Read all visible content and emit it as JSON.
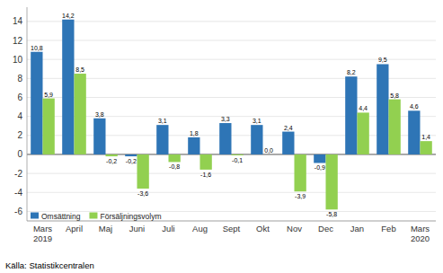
{
  "chart_data": {
    "type": "bar",
    "categories": [
      "Mars\n2019",
      "April",
      "Maj",
      "Juni",
      "Juli",
      "Aug",
      "Sept",
      "Okt",
      "Nov",
      "Dec",
      "Jan",
      "Feb",
      "Mars\n2020"
    ],
    "series": [
      {
        "name": "Omsättning",
        "color": "#2E75B6",
        "values": [
          10.8,
          14.2,
          3.8,
          -0.2,
          3.1,
          1.8,
          3.3,
          3.1,
          2.4,
          -0.9,
          8.2,
          9.5,
          4.6
        ],
        "value_labels": [
          "10,8",
          "14,2",
          "3,8",
          "-0,2",
          "3,1",
          "1,8",
          "3,3",
          "3,1",
          "2,4",
          "-0,9",
          "8,2",
          "9,5",
          "4,6"
        ]
      },
      {
        "name": "Försäljningsvolym",
        "color": "#92D050",
        "values": [
          5.9,
          8.5,
          -0.2,
          -3.6,
          -0.8,
          -1.6,
          -0.1,
          0.0,
          -3.9,
          -5.8,
          4.4,
          5.8,
          1.4
        ],
        "value_labels": [
          "5,9",
          "8,5",
          "-0,2",
          "-3,6",
          "-0,8",
          "-1,6",
          "-0,1",
          "0,0",
          "-3,9",
          "-5,8",
          "4,4",
          "5,8",
          "1,4"
        ]
      }
    ],
    "ylim": [
      -7,
      15.5
    ],
    "yticks": [
      -6,
      -4,
      -2,
      0,
      2,
      4,
      6,
      8,
      10,
      12,
      14
    ],
    "grid": true,
    "legend": "lower left",
    "data_labels": true,
    "annotations": [
      "Källa: Statistikcentralen"
    ]
  }
}
